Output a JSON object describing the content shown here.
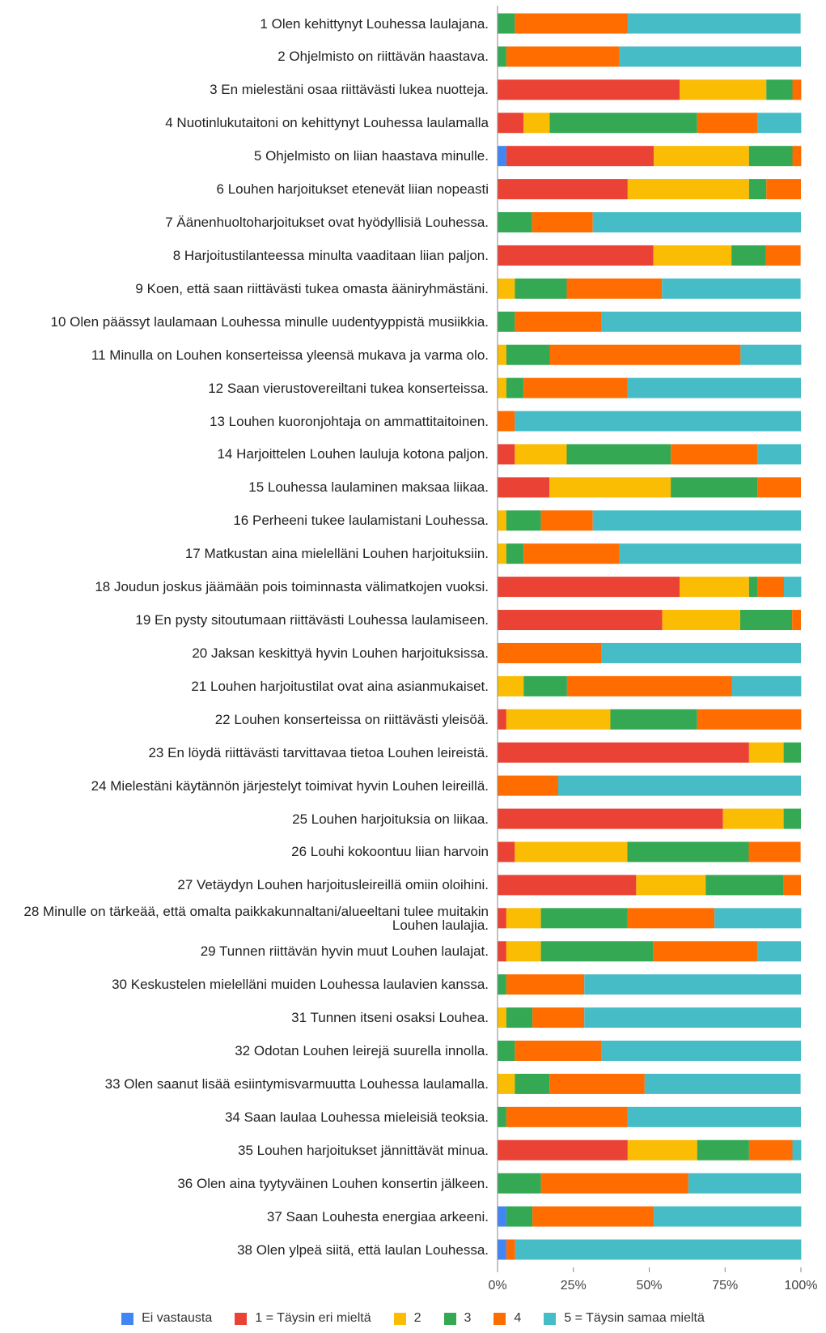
{
  "chart_data": {
    "type": "bar",
    "orientation": "horizontal",
    "stacked": true,
    "categories": [
      "1 Olen kehittynyt Louhessa laulajana.",
      "2 Ohjelmisto on riittävän haastava.",
      "3 En mielestäni osaa riittävästi lukea nuotteja.",
      "4 Nuotinlukutaitoni on kehittynyt Louhessa laulamalla",
      "5 Ohjelmisto on liian haastava minulle.",
      "6 Louhen harjoitukset etenevät liian nopeasti",
      "7 Äänenhuoltoharjoitukset ovat hyödyllisiä Louhessa.",
      "8 Harjoitustilanteessa minulta vaaditaan liian paljon.",
      "9 Koen, että saan riittävästi tukea omasta ääniryhmästäni.",
      "10 Olen päässyt laulamaan Louhessa  minulle uudentyyppistä musiikkia.",
      "11 Minulla on Louhen konserteissa yleensä mukava ja varma olo.",
      "12 Saan vierustovereiltani tukea konserteissa.",
      "13 Louhen kuoronjohtaja on ammattitaitoinen.",
      "14 Harjoittelen Louhen lauluja kotona paljon.",
      "15 Louhessa laulaminen maksaa liikaa.",
      "16 Perheeni tukee laulamistani Louhessa.",
      "17 Matkustan aina mielelläni Louhen harjoituksiin.",
      "18 Joudun joskus jäämään pois toiminnasta välimatkojen vuoksi.",
      "19 En pysty sitoutumaan riittävästi Louhessa laulamiseen.",
      "20 Jaksan keskittyä hyvin Louhen harjoituksissa.",
      "21 Louhen harjoitustilat ovat aina asianmukaiset.",
      "22 Louhen konserteissa on riittävästi yleisöä.",
      "23 En löydä riittävästi tarvittavaa tietoa Louhen leireistä.",
      "24 Mielestäni käytännön järjestelyt toimivat hyvin Louhen leireillä.",
      "25 Louhen harjoituksia on liikaa.",
      "26 Louhi kokoontuu liian harvoin",
      "27 Vetäydyn Louhen harjoitusleireillä omiin oloihini.",
      "28 Minulle on tärkeää, että omalta paikkakunnaltani/alueeltani tulee muitakin Louhen laulajia.",
      "29 Tunnen riittävän hyvin muut Louhen laulajat.",
      "30 Keskustelen mielelläni muiden Louhessa laulavien kanssa.",
      "31 Tunnen itseni osaksi Louhea.",
      "32 Odotan Louhen leirejä suurella innolla.",
      "33 Olen saanut lisää esiintymisvarmuutta Louhessa laulamalla.",
      "34 Saan laulaa Louhessa mieleisiä teoksia.",
      "35 Louhen harjoitukset jännittävät minua.",
      "36 Olen aina tyytyväinen Louhen konsertin jälkeen.",
      "37 Saan Louhesta energiaa arkeeni.",
      "38 Olen ylpeä siitä, että laulan Louhessa."
    ],
    "series": [
      {
        "name": "Ei vastausta",
        "color": "#4285f4",
        "values": [
          0,
          0,
          0,
          0,
          2.9,
          0,
          0,
          0,
          0,
          0,
          0,
          0,
          0,
          0,
          0,
          0,
          0,
          0,
          0,
          0,
          0,
          0,
          0,
          0,
          0,
          0,
          0,
          0,
          0,
          0,
          0,
          0,
          0,
          0,
          0,
          0,
          2.9,
          2.9
        ]
      },
      {
        "name": "1 = Täysin eri mieltä",
        "color": "#ea4335",
        "values": [
          0,
          0,
          60,
          8.6,
          48.6,
          42.9,
          0,
          51.4,
          0,
          0,
          0,
          0,
          0,
          5.7,
          17.1,
          0,
          0,
          60,
          54.3,
          0,
          0,
          2.9,
          82.9,
          0,
          74.3,
          5.7,
          45.7,
          2.9,
          2.9,
          0,
          0,
          0,
          0,
          0,
          42.9,
          0,
          0,
          0
        ]
      },
      {
        "name": "2",
        "color": "#fbbc04",
        "values": [
          0,
          0,
          28.6,
          8.6,
          31.4,
          40,
          0,
          25.7,
          5.7,
          0,
          2.9,
          2.9,
          0,
          17.1,
          40,
          2.9,
          2.9,
          22.9,
          25.7,
          0,
          8.6,
          34.3,
          11.4,
          0,
          20,
          37.1,
          22.9,
          11.4,
          11.4,
          0,
          2.9,
          0,
          5.7,
          0,
          22.9,
          0,
          0,
          0
        ]
      },
      {
        "name": "3",
        "color": "#34a853",
        "values": [
          5.7,
          2.9,
          8.6,
          48.6,
          14.3,
          5.7,
          11.4,
          11.4,
          17.1,
          5.7,
          14.3,
          5.7,
          0,
          34.3,
          28.6,
          11.4,
          5.7,
          2.9,
          17.1,
          0,
          14.3,
          28.6,
          5.7,
          0,
          5.7,
          40,
          25.7,
          28.6,
          37.1,
          2.9,
          8.6,
          5.7,
          11.4,
          2.9,
          17.1,
          14.3,
          8.6,
          0
        ]
      },
      {
        "name": "4",
        "color": "#ff6d01",
        "values": [
          37.1,
          37.1,
          2.9,
          20,
          2.9,
          11.4,
          20,
          11.4,
          31.4,
          28.6,
          62.9,
          34.3,
          5.7,
          28.6,
          14.3,
          17.1,
          31.4,
          8.6,
          2.9,
          34.3,
          54.3,
          34.3,
          0,
          20,
          0,
          17.1,
          5.7,
          28.6,
          34.3,
          25.7,
          17.1,
          28.6,
          31.4,
          40,
          14.3,
          48.6,
          40,
          2.9
        ]
      },
      {
        "name": "5 = Täysin samaa mieltä",
        "color": "#46bdc6",
        "values": [
          57.1,
          60,
          0,
          14.3,
          0,
          0,
          68.6,
          0,
          45.7,
          65.7,
          20,
          57.1,
          94.3,
          14.3,
          0,
          68.6,
          60,
          5.7,
          0,
          65.7,
          22.9,
          0,
          0,
          80,
          0,
          0,
          0,
          28.6,
          14.3,
          71.4,
          71.4,
          65.7,
          51.4,
          57.1,
          2.9,
          37.1,
          48.6,
          94.3
        ]
      }
    ],
    "xlim": [
      0,
      100
    ],
    "xticks": [
      {
        "value": 0,
        "label": "0%"
      },
      {
        "value": 25,
        "label": "25%"
      },
      {
        "value": 50,
        "label": "50%"
      },
      {
        "value": 75,
        "label": "75%"
      },
      {
        "value": 100,
        "label": "100%"
      }
    ],
    "legend": "bottom"
  }
}
